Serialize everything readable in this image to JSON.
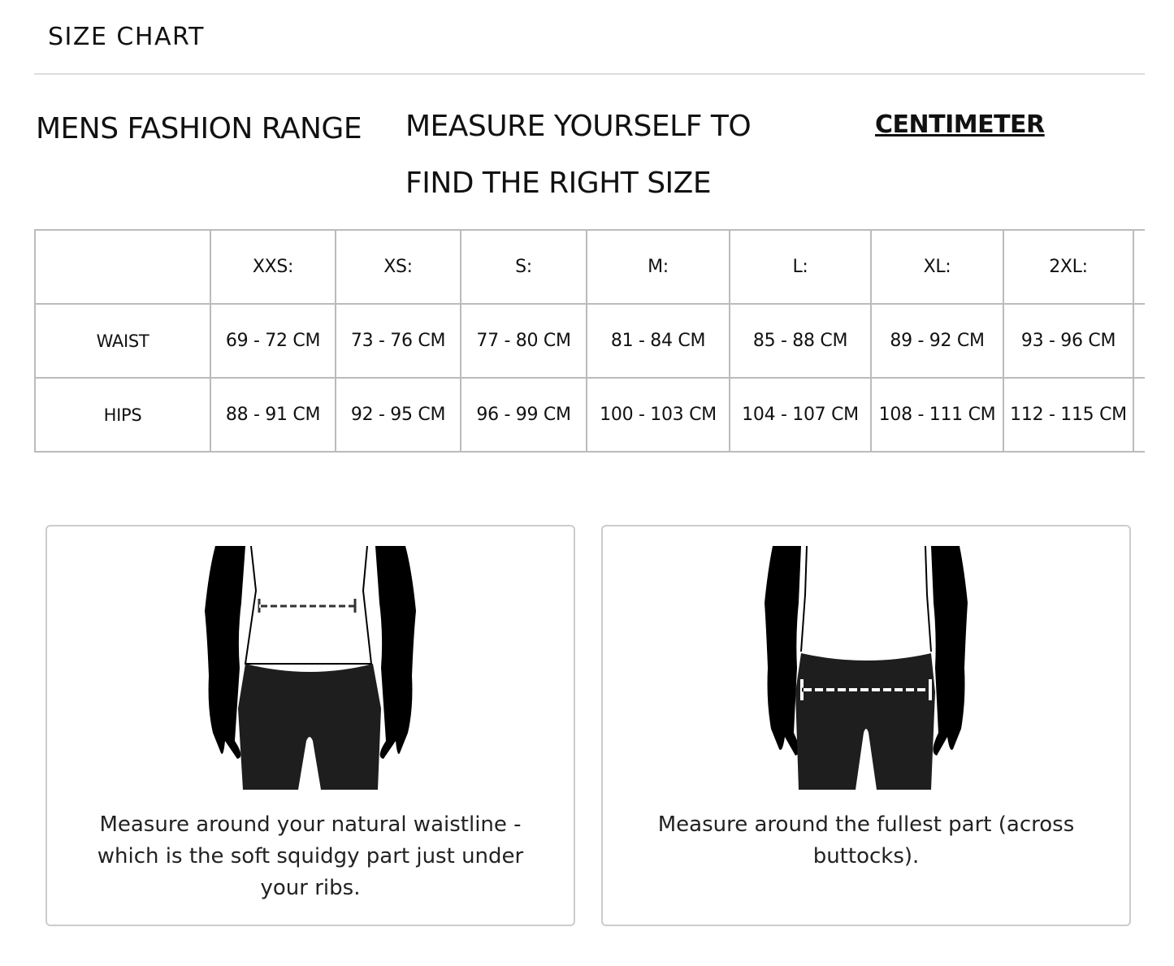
{
  "header": {
    "title": "SIZE CHART"
  },
  "section": {
    "range_title": "MENS FASHION RANGE",
    "measure_title": "MEASURE YOURSELF TO FIND THE RIGHT SIZE",
    "unit_toggle": "CENTIMETER"
  },
  "table": {
    "sizes": [
      "XXS:",
      "XS:",
      "S:",
      "M:",
      "L:",
      "XL:",
      "2XL:",
      ""
    ],
    "rows": [
      {
        "label": "WAIST",
        "values": [
          "69 - 72 CM",
          "73 - 76 CM",
          "77 - 80 CM",
          "81 - 84 CM",
          "85 - 88 CM",
          "89 - 92 CM",
          "93 - 96 CM",
          ""
        ]
      },
      {
        "label": "HIPS",
        "values": [
          "88 - 91 CM",
          "92 - 95 CM",
          "96 - 99 CM",
          "100 - 103 CM",
          "104 - 107 CM",
          "108 - 111 CM",
          "112 - 115 CM",
          ""
        ]
      }
    ]
  },
  "guides": [
    {
      "icon": "waist-measure-figure-icon",
      "text": "Measure around your natural waistline - which is the soft squidgy part just under your ribs."
    },
    {
      "icon": "hips-measure-figure-icon",
      "text": "Measure around the fullest part (across buttocks)."
    }
  ]
}
